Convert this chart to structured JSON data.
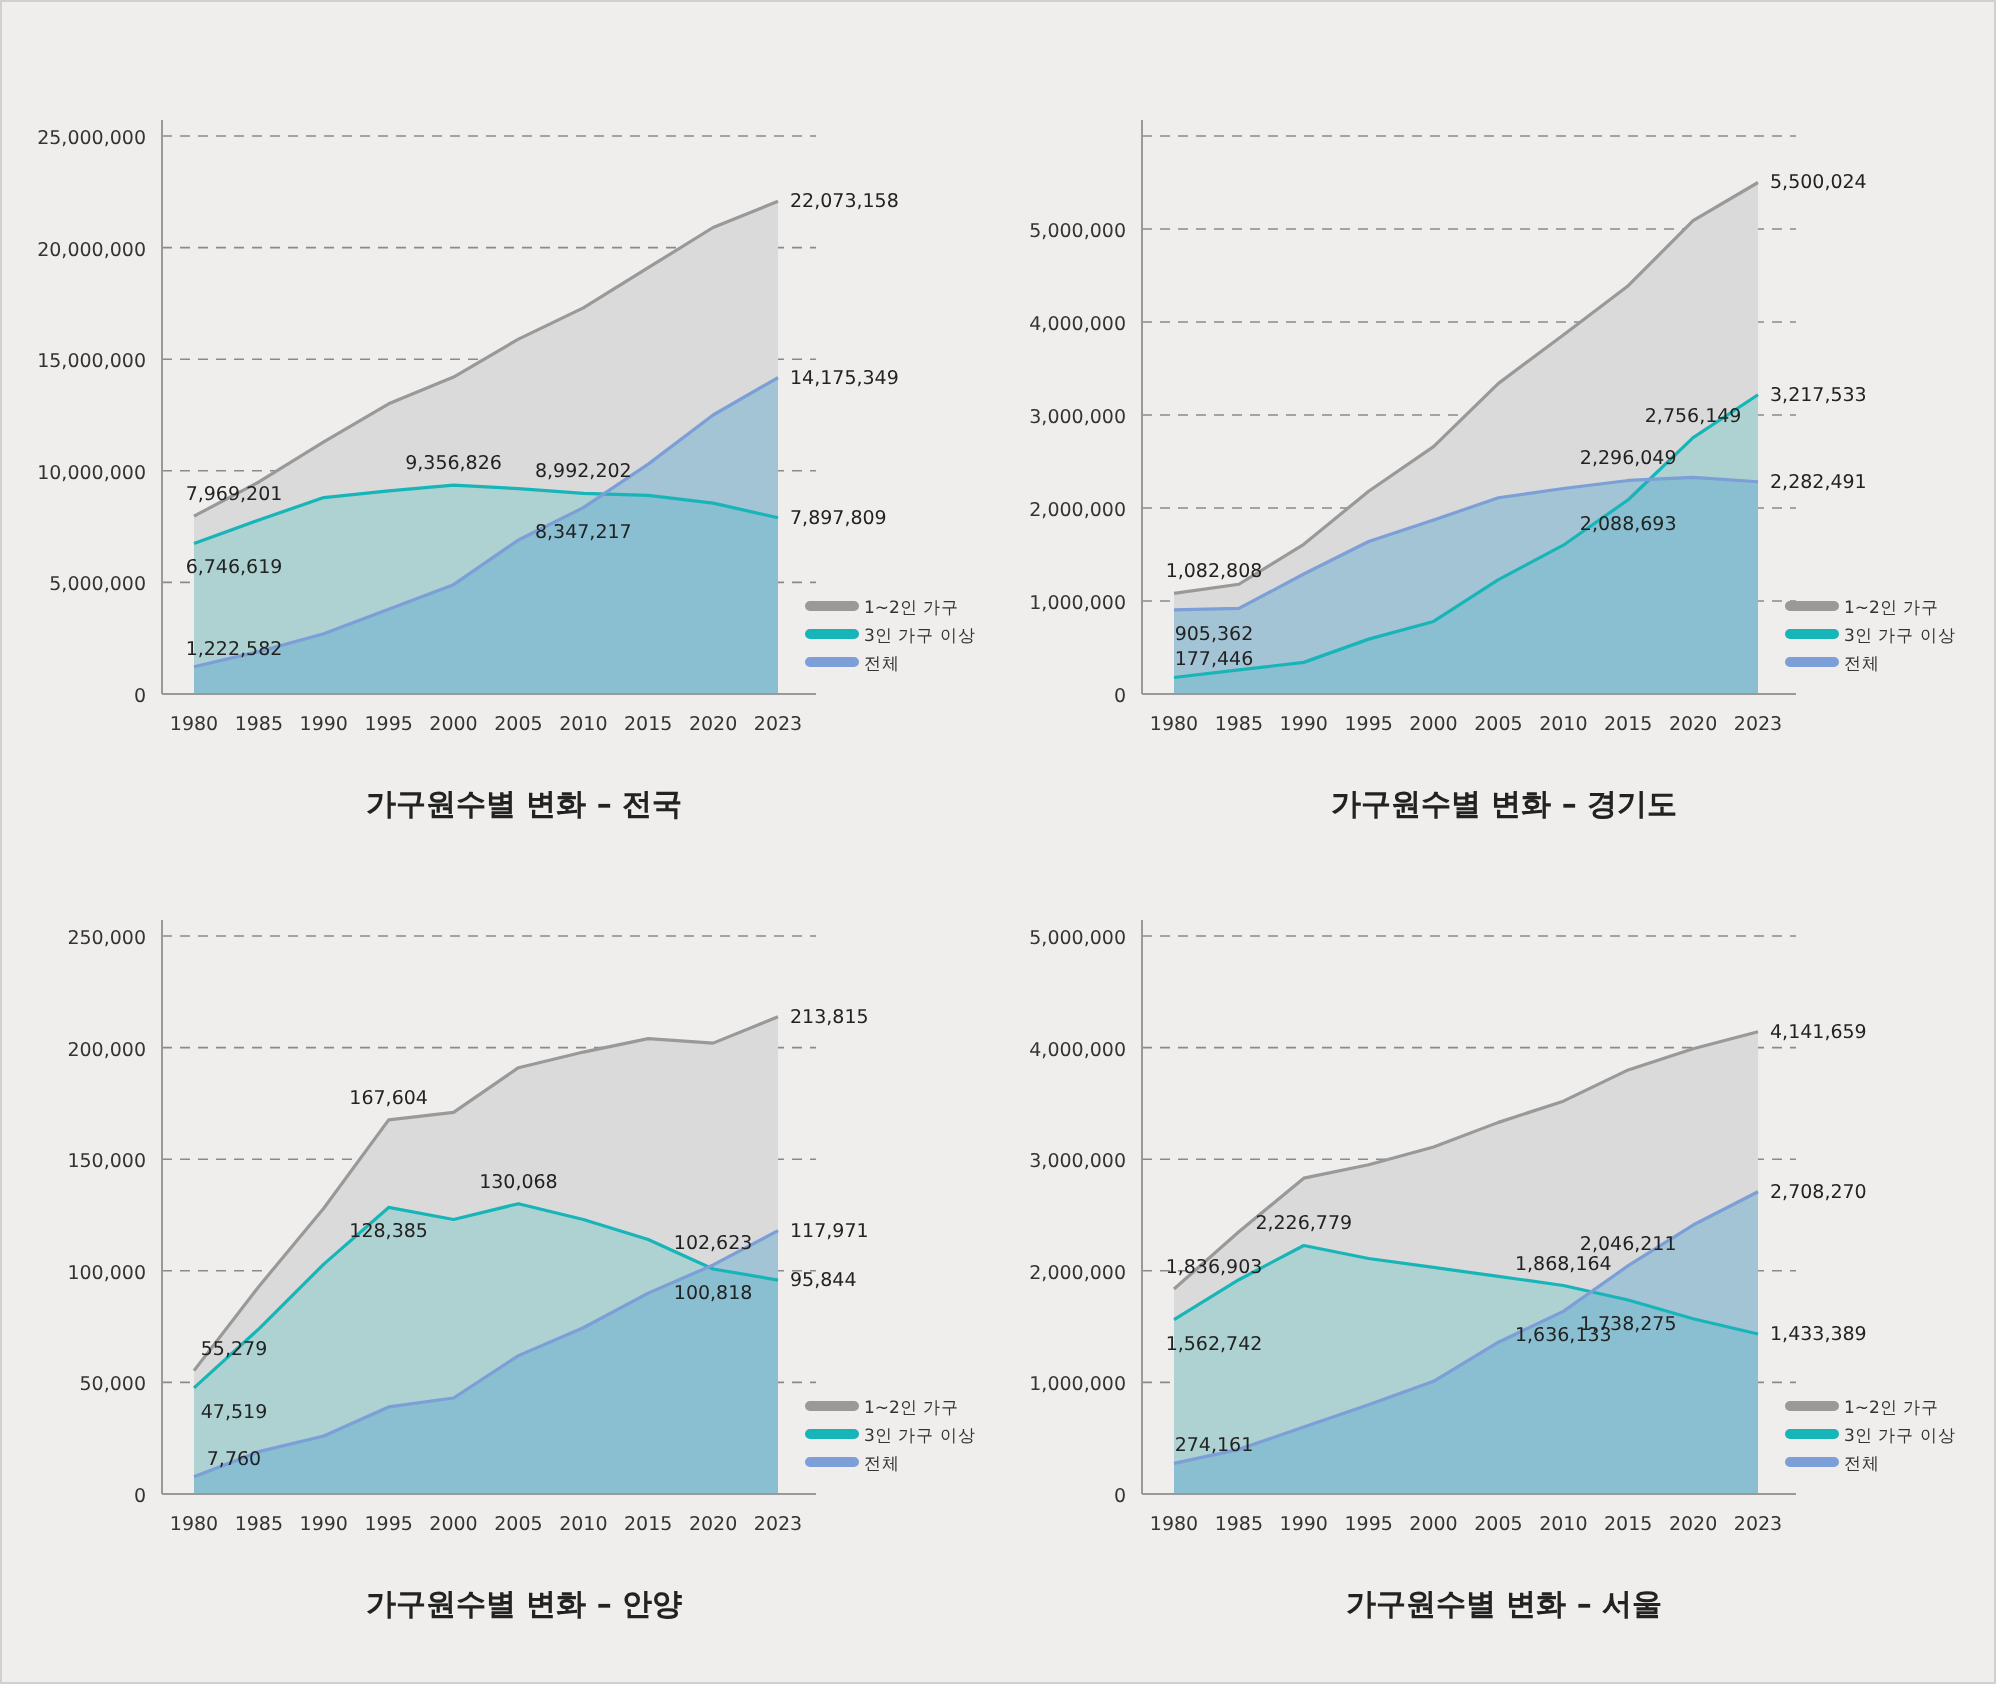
{
  "chart_data": [
    {
      "type": "area",
      "title": "가구원수별 변화 – 전국",
      "categories": [
        "1980",
        "1985",
        "1990",
        "1995",
        "2000",
        "2005",
        "2010",
        "2015",
        "2020",
        "2023"
      ],
      "ylim": [
        0,
        25000000
      ],
      "yticks": [
        {
          "value": 0,
          "label": "0"
        },
        {
          "value": 5000000,
          "label": "5,000,000"
        },
        {
          "value": 10000000,
          "label": "10,000,000"
        },
        {
          "value": 15000000,
          "label": "15,000,000"
        },
        {
          "value": 20000000,
          "label": "20,000,000"
        },
        {
          "value": 25000000,
          "label": "25,000,000"
        }
      ],
      "grid": "y",
      "legend": "bottom right",
      "line_style": "solid",
      "series": [
        {
          "name": "1~2인 가구",
          "color": "#999999",
          "values": [
            7969201,
            9500000,
            11300000,
            13000000,
            14200000,
            15900000,
            17300000,
            19100000,
            20900000,
            22073158
          ],
          "value_labels": [
            "7,969,201",
            null,
            null,
            null,
            null,
            null,
            null,
            null,
            null,
            "22,073,158"
          ]
        },
        {
          "name": "3인 가구 이상",
          "color": "#17b5b8",
          "values": [
            6746619,
            7800000,
            8800000,
            9100000,
            9356826,
            9200000,
            8992202,
            8900000,
            8550000,
            7897809
          ],
          "value_labels": [
            "6,746,619",
            null,
            null,
            null,
            "9,356,826",
            null,
            "8,992,202",
            null,
            null,
            "7,897,809"
          ]
        },
        {
          "name": "전체",
          "color": "#7b9fd6",
          "values": [
            1222582,
            1900000,
            2700000,
            3800000,
            4900000,
            6900000,
            8347217,
            10300000,
            12500000,
            14175349
          ],
          "value_labels": [
            "1,222,582",
            null,
            null,
            null,
            null,
            null,
            "8,347,217",
            null,
            null,
            "14,175,349"
          ]
        }
      ]
    },
    {
      "type": "area",
      "title": "가구원수별 변화 – 경기도",
      "categories": [
        "1980",
        "1985",
        "1990",
        "1995",
        "2000",
        "2005",
        "2010",
        "2015",
        "2020",
        "2023"
      ],
      "ylim": [
        0,
        6000000
      ],
      "yticks": [
        {
          "value": 0,
          "label": "0"
        },
        {
          "value": 1000000,
          "label": "1,000,000"
        },
        {
          "value": 2000000,
          "label": "2,000,000"
        },
        {
          "value": 3000000,
          "label": "3,000,000"
        },
        {
          "value": 4000000,
          "label": "4,000,000"
        },
        {
          "value": 5000000,
          "label": "5,000,000"
        },
        {
          "value": 6000000,
          "label": null
        }
      ],
      "grid": "y",
      "legend": "bottom right",
      "line_style": "solid",
      "series": [
        {
          "name": "1~2인 가구",
          "color": "#999999",
          "values": [
            1082808,
            1180000,
            1610000,
            2180000,
            2660000,
            3340000,
            3860000,
            4390000,
            5090000,
            5500024
          ],
          "value_labels": [
            "1,082,808",
            null,
            null,
            null,
            null,
            null,
            null,
            null,
            null,
            "5,500,024"
          ]
        },
        {
          "name": "3인 가구 이상",
          "color": "#17b5b8",
          "values": [
            177446,
            260000,
            340000,
            590000,
            780000,
            1230000,
            1600000,
            2088693,
            2756149,
            3217533
          ],
          "value_labels": [
            "177,446",
            null,
            null,
            null,
            null,
            null,
            null,
            "2,088,693",
            "2,756,149",
            "3,217,533"
          ]
        },
        {
          "name": "전체",
          "color": "#7b9fd6",
          "values": [
            905362,
            920000,
            1290000,
            1640000,
            1870000,
            2110000,
            2210000,
            2296049,
            2330000,
            2282491
          ],
          "value_labels": [
            "905,362",
            null,
            null,
            null,
            null,
            null,
            null,
            "2,296,049",
            null,
            "2,282,491"
          ]
        }
      ]
    },
    {
      "type": "area",
      "title": "가구원수별 변화 – 안양",
      "categories": [
        "1980",
        "1985",
        "1990",
        "1995",
        "2000",
        "2005",
        "2010",
        "2015",
        "2020",
        "2023"
      ],
      "ylim": [
        0,
        250000
      ],
      "yticks": [
        {
          "value": 0,
          "label": "0"
        },
        {
          "value": 50000,
          "label": "50,000"
        },
        {
          "value": 100000,
          "label": "100,000"
        },
        {
          "value": 150000,
          "label": "150,000"
        },
        {
          "value": 200000,
          "label": "200,000"
        },
        {
          "value": 250000,
          "label": "250,000"
        }
      ],
      "grid": "y",
      "legend": "bottom right",
      "line_style": "solid",
      "series": [
        {
          "name": "1~2인 가구",
          "color": "#999999",
          "values": [
            55279,
            93000,
            128000,
            167604,
            171000,
            191000,
            198000,
            204000,
            202000,
            213815
          ],
          "value_labels": [
            "55,279",
            null,
            null,
            "167,604",
            null,
            null,
            null,
            null,
            null,
            "213,815"
          ]
        },
        {
          "name": "3인 가구 이상",
          "color": "#17b5b8",
          "values": [
            47519,
            74000,
            103000,
            128385,
            123000,
            130068,
            123000,
            114000,
            100818,
            95844
          ],
          "value_labels": [
            "47,519",
            null,
            null,
            "128,385",
            null,
            "130,068",
            null,
            null,
            "100,818",
            "95,844"
          ]
        },
        {
          "name": "전체",
          "color": "#7b9fd6",
          "values": [
            7760,
            19000,
            26000,
            39000,
            43000,
            62000,
            74500,
            90000,
            102623,
            117971
          ],
          "value_labels": [
            "7,760",
            null,
            null,
            null,
            null,
            null,
            null,
            null,
            "102,623",
            "117,971"
          ]
        }
      ]
    },
    {
      "type": "area",
      "title": "가구원수별 변화 – 서울",
      "categories": [
        "1980",
        "1985",
        "1990",
        "1995",
        "2000",
        "2005",
        "2010",
        "2015",
        "2020",
        "2023"
      ],
      "ylim": [
        0,
        5000000
      ],
      "yticks": [
        {
          "value": 0,
          "label": "0"
        },
        {
          "value": 1000000,
          "label": "1,000,000"
        },
        {
          "value": 2000000,
          "label": "2,000,000"
        },
        {
          "value": 3000000,
          "label": "3,000,000"
        },
        {
          "value": 4000000,
          "label": "4,000,000"
        },
        {
          "value": 5000000,
          "label": "5,000,000"
        }
      ],
      "grid": "y",
      "legend": "bottom right",
      "line_style": "solid",
      "series": [
        {
          "name": "1~2인 가구",
          "color": "#999999",
          "values": [
            1836903,
            2350000,
            2830000,
            2950000,
            3110000,
            3330000,
            3520000,
            3800000,
            3990000,
            4141659
          ],
          "value_labels": [
            "1,836,903",
            null,
            null,
            null,
            null,
            null,
            null,
            null,
            null,
            "4,141,659"
          ]
        },
        {
          "name": "3인 가구 이상",
          "color": "#17b5b8",
          "values": [
            1562742,
            1920000,
            2226779,
            2110000,
            2030000,
            1950000,
            1868164,
            1738275,
            1570000,
            1433389
          ],
          "value_labels": [
            "1,562,742",
            null,
            "2,226,779",
            null,
            null,
            null,
            "1,868,164",
            "1,738,275",
            null,
            "1,433,389"
          ]
        },
        {
          "name": "전체",
          "color": "#7b9fd6",
          "values": [
            274161,
            400000,
            600000,
            800000,
            1010000,
            1360000,
            1636133,
            2046211,
            2410000,
            2708270
          ],
          "value_labels": [
            "274,161",
            null,
            null,
            null,
            null,
            null,
            "1,636,133",
            "2,046,211",
            null,
            "2,708,270"
          ]
        }
      ]
    }
  ]
}
